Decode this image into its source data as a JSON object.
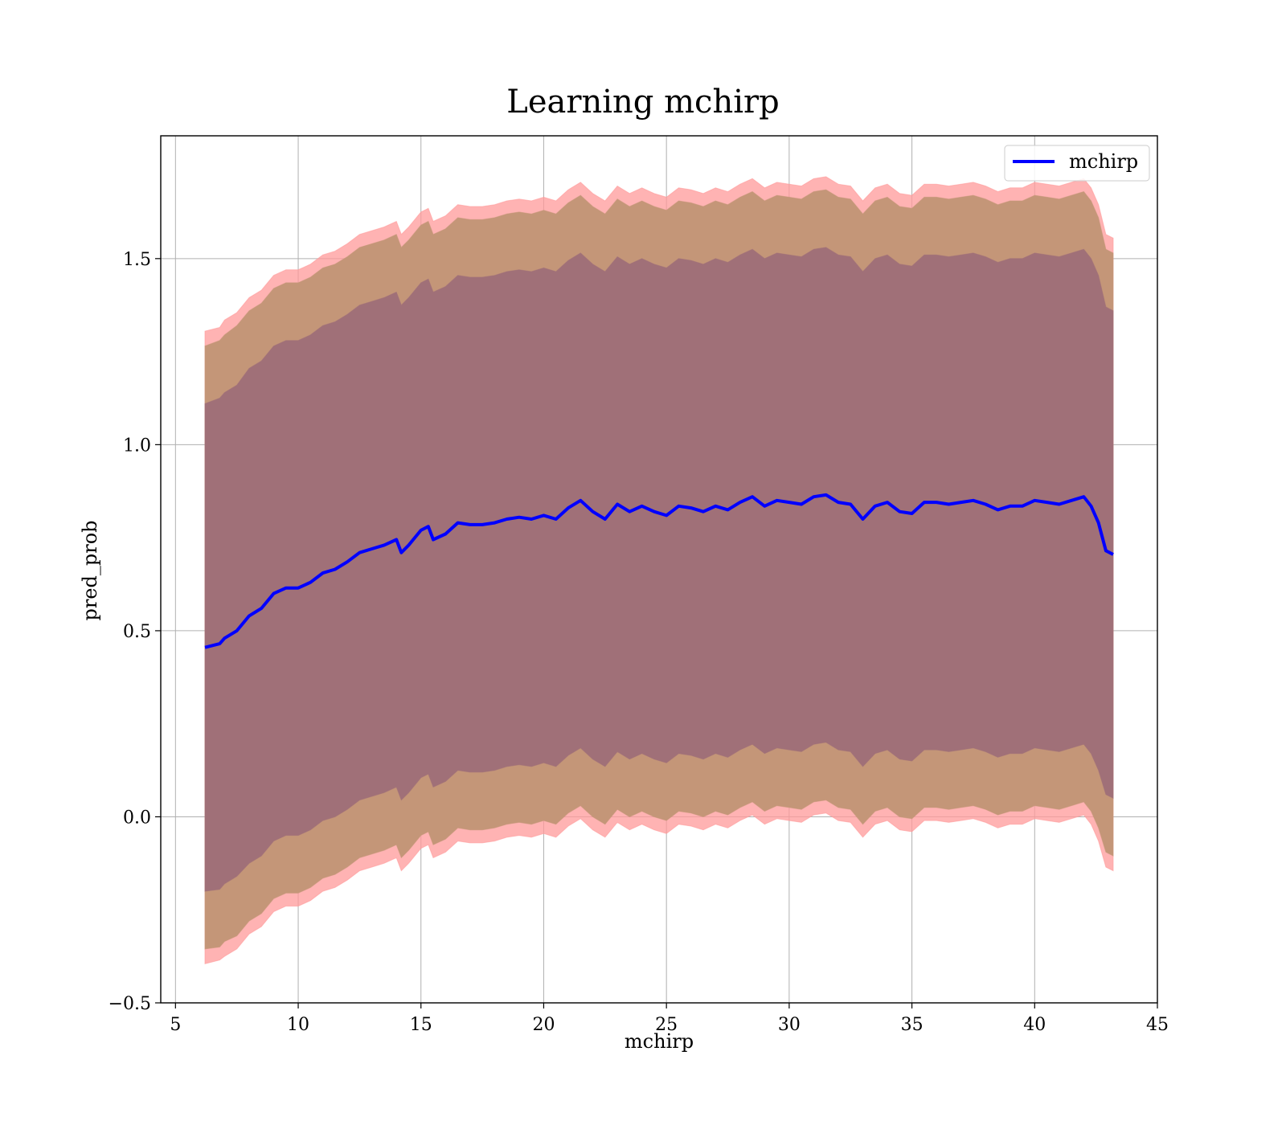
{
  "chart_data": {
    "type": "area",
    "title": "Learning mchirp",
    "xlabel": "mchirp",
    "ylabel": "pred_prob",
    "xlim": [
      4.4,
      45
    ],
    "ylim": [
      -0.5,
      1.83
    ],
    "xticks": [
      5,
      10,
      15,
      20,
      25,
      30,
      35,
      40,
      45
    ],
    "xtick_labels": [
      "5",
      "10",
      "15",
      "20",
      "25",
      "30",
      "35",
      "40",
      "45"
    ],
    "yticks": [
      -0.5,
      0.0,
      0.5,
      1.0,
      1.5
    ],
    "ytick_labels": [
      "−0.5",
      "0.0",
      "0.5",
      "1.0",
      "1.5"
    ],
    "grid": true,
    "legend": {
      "position": "top-right",
      "entries": [
        "mchirp"
      ]
    },
    "colors": {
      "line": "#0000ff",
      "band_outer": "#ff9999",
      "band_middle": "#c49678",
      "band_inner": "#a07078",
      "grid": "#b0b0b0"
    },
    "x": [
      6.2,
      6.8,
      7.0,
      7.5,
      8.0,
      8.5,
      9.0,
      9.5,
      10.0,
      10.5,
      11.0,
      11.5,
      12.0,
      12.5,
      13.0,
      13.5,
      14.0,
      14.2,
      14.5,
      15.0,
      15.3,
      15.5,
      16.0,
      16.5,
      17.0,
      17.5,
      18.0,
      18.5,
      19.0,
      19.5,
      20.0,
      20.5,
      21.0,
      21.5,
      22.0,
      22.5,
      23.0,
      23.5,
      24.0,
      24.5,
      25.0,
      25.5,
      26.0,
      26.5,
      27.0,
      27.5,
      28.0,
      28.5,
      29.0,
      29.5,
      30.0,
      30.5,
      31.0,
      31.5,
      32.0,
      32.5,
      33.0,
      33.5,
      34.0,
      34.5,
      35.0,
      35.5,
      36.0,
      36.5,
      37.0,
      37.5,
      38.0,
      38.5,
      39.0,
      39.5,
      40.0,
      40.5,
      41.0,
      41.5,
      42.0,
      42.3,
      42.6,
      42.9,
      43.2
    ],
    "series": [
      {
        "name": "mchirp",
        "y": [
          0.455,
          0.465,
          0.48,
          0.5,
          0.54,
          0.56,
          0.6,
          0.615,
          0.615,
          0.63,
          0.655,
          0.665,
          0.685,
          0.71,
          0.72,
          0.73,
          0.745,
          0.71,
          0.73,
          0.77,
          0.78,
          0.745,
          0.76,
          0.79,
          0.785,
          0.785,
          0.79,
          0.8,
          0.805,
          0.8,
          0.81,
          0.8,
          0.83,
          0.85,
          0.82,
          0.8,
          0.84,
          0.82,
          0.835,
          0.82,
          0.81,
          0.835,
          0.83,
          0.82,
          0.835,
          0.825,
          0.845,
          0.86,
          0.835,
          0.85,
          0.845,
          0.84,
          0.86,
          0.865,
          0.845,
          0.84,
          0.8,
          0.835,
          0.845,
          0.82,
          0.815,
          0.845,
          0.845,
          0.84,
          0.845,
          0.85,
          0.84,
          0.825,
          0.835,
          0.835,
          0.85,
          0.845,
          0.84,
          0.85,
          0.86,
          0.835,
          0.79,
          0.715,
          0.705
        ]
      }
    ],
    "bands": {
      "inner_offset": [
        0.655,
        0.66,
        0.66,
        0.66,
        0.665,
        0.665,
        0.665,
        0.665,
        0.665,
        0.665,
        0.665,
        0.665,
        0.665,
        0.665,
        0.665,
        0.665,
        0.665,
        0.665,
        0.665,
        0.665,
        0.665,
        0.665,
        0.665,
        0.665,
        0.665,
        0.665,
        0.665,
        0.665,
        0.665,
        0.665,
        0.665,
        0.665,
        0.665,
        0.665,
        0.665,
        0.665,
        0.665,
        0.665,
        0.665,
        0.665,
        0.665,
        0.665,
        0.665,
        0.665,
        0.665,
        0.665,
        0.665,
        0.665,
        0.665,
        0.665,
        0.665,
        0.665,
        0.665,
        0.665,
        0.665,
        0.665,
        0.665,
        0.665,
        0.665,
        0.665,
        0.665,
        0.665,
        0.665,
        0.665,
        0.665,
        0.665,
        0.665,
        0.665,
        0.665,
        0.665,
        0.665,
        0.665,
        0.665,
        0.665,
        0.665,
        0.665,
        0.665,
        0.655,
        0.655
      ],
      "middle_offset": [
        0.81,
        0.815,
        0.815,
        0.82,
        0.82,
        0.82,
        0.82,
        0.82,
        0.82,
        0.82,
        0.82,
        0.82,
        0.82,
        0.82,
        0.82,
        0.82,
        0.82,
        0.82,
        0.82,
        0.82,
        0.82,
        0.82,
        0.82,
        0.82,
        0.82,
        0.82,
        0.82,
        0.82,
        0.82,
        0.82,
        0.82,
        0.82,
        0.82,
        0.82,
        0.82,
        0.82,
        0.82,
        0.82,
        0.82,
        0.82,
        0.82,
        0.82,
        0.82,
        0.82,
        0.82,
        0.82,
        0.82,
        0.82,
        0.82,
        0.82,
        0.82,
        0.82,
        0.82,
        0.82,
        0.82,
        0.82,
        0.82,
        0.82,
        0.82,
        0.82,
        0.82,
        0.82,
        0.82,
        0.82,
        0.82,
        0.82,
        0.82,
        0.82,
        0.82,
        0.82,
        0.82,
        0.82,
        0.82,
        0.82,
        0.82,
        0.82,
        0.82,
        0.81,
        0.81
      ],
      "outer_offset": [
        0.85,
        0.85,
        0.855,
        0.855,
        0.855,
        0.855,
        0.855,
        0.855,
        0.855,
        0.855,
        0.855,
        0.855,
        0.855,
        0.855,
        0.855,
        0.855,
        0.855,
        0.855,
        0.855,
        0.855,
        0.855,
        0.855,
        0.855,
        0.855,
        0.855,
        0.855,
        0.855,
        0.855,
        0.855,
        0.855,
        0.855,
        0.855,
        0.855,
        0.855,
        0.855,
        0.855,
        0.855,
        0.855,
        0.855,
        0.855,
        0.855,
        0.855,
        0.855,
        0.855,
        0.855,
        0.855,
        0.855,
        0.855,
        0.855,
        0.855,
        0.855,
        0.855,
        0.855,
        0.855,
        0.855,
        0.855,
        0.855,
        0.855,
        0.855,
        0.855,
        0.855,
        0.855,
        0.855,
        0.855,
        0.855,
        0.855,
        0.855,
        0.855,
        0.855,
        0.855,
        0.855,
        0.855,
        0.855,
        0.855,
        0.855,
        0.855,
        0.855,
        0.85,
        0.85
      ]
    }
  }
}
